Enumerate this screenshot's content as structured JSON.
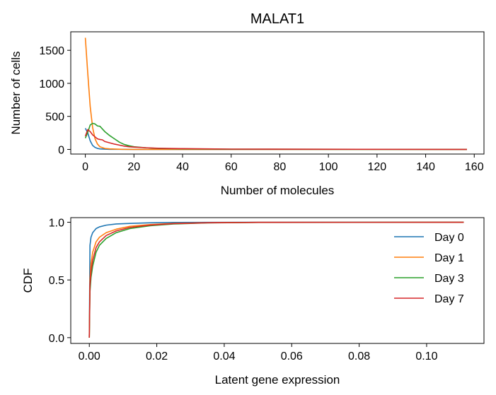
{
  "chart_data": [
    {
      "type": "line",
      "title": "MALAT1",
      "xlabel": "Number of molecules",
      "ylabel": "Number of cells",
      "xlim": [
        -6,
        164
      ],
      "ylim": [
        -70,
        1780
      ],
      "xticks": [
        0,
        20,
        40,
        60,
        80,
        100,
        120,
        140,
        160
      ],
      "yticks": [
        0,
        500,
        1000,
        1500
      ],
      "grid": false,
      "series": [
        {
          "name": "Day 0",
          "color": "#1f77b4",
          "x": [
            0,
            1,
            2,
            3,
            4,
            5,
            6,
            8,
            10,
            15,
            20,
            157
          ],
          "y": [
            320,
            250,
            130,
            60,
            30,
            15,
            8,
            4,
            2,
            1,
            0,
            0
          ]
        },
        {
          "name": "Day 1",
          "color": "#ff7f0e",
          "x": [
            0,
            1,
            2,
            3,
            4,
            5,
            6,
            8,
            10,
            15,
            20,
            157
          ],
          "y": [
            1690,
            1150,
            650,
            330,
            160,
            80,
            40,
            15,
            8,
            2,
            0,
            0
          ]
        },
        {
          "name": "Day 3",
          "color": "#2ca02c",
          "x": [
            0,
            1,
            2,
            3,
            4,
            5,
            6,
            7,
            8,
            10,
            12,
            14,
            16,
            18,
            20,
            25,
            30,
            40,
            60,
            157
          ],
          "y": [
            170,
            260,
            370,
            395,
            385,
            355,
            350,
            310,
            270,
            210,
            160,
            110,
            75,
            55,
            40,
            25,
            15,
            8,
            3,
            0
          ]
        },
        {
          "name": "Day 7",
          "color": "#d62728",
          "x": [
            0,
            1,
            2,
            3,
            4,
            5,
            6,
            7,
            8,
            10,
            12,
            14,
            16,
            18,
            20,
            25,
            30,
            40,
            60,
            157
          ],
          "y": [
            200,
            300,
            270,
            220,
            190,
            160,
            150,
            145,
            120,
            100,
            80,
            65,
            50,
            40,
            35,
            25,
            18,
            12,
            5,
            0
          ]
        }
      ]
    },
    {
      "type": "line",
      "title": "",
      "xlabel": "Latent gene expression",
      "ylabel": "CDF",
      "xlim": [
        -0.0055,
        0.117
      ],
      "ylim": [
        -0.05,
        1.04
      ],
      "xticks": [
        0.0,
        0.02,
        0.04,
        0.06,
        0.08,
        0.1
      ],
      "xticklabels": [
        "0.00",
        "0.02",
        "0.04",
        "0.06",
        "0.08",
        "0.10"
      ],
      "yticks": [
        0.0,
        0.5,
        1.0
      ],
      "yticklabels": [
        "0.0",
        "0.5",
        "1.0"
      ],
      "grid": false,
      "legend": "top-right",
      "series": [
        {
          "name": "Day 0",
          "color": "#1f77b4",
          "x": [
            0,
            0.0002,
            0.0005,
            0.001,
            0.002,
            0.003,
            0.005,
            0.008,
            0.012,
            0.018,
            0.025,
            0.035,
            0.05,
            0.111
          ],
          "y": [
            0,
            0.8,
            0.87,
            0.91,
            0.945,
            0.96,
            0.975,
            0.985,
            0.99,
            0.995,
            0.998,
            0.999,
            1.0,
            1.0
          ]
        },
        {
          "name": "Day 1",
          "color": "#ff7f0e",
          "x": [
            0,
            0.0002,
            0.0005,
            0.001,
            0.002,
            0.003,
            0.005,
            0.008,
            0.012,
            0.018,
            0.025,
            0.035,
            0.05,
            0.111
          ],
          "y": [
            0,
            0.5,
            0.64,
            0.74,
            0.83,
            0.87,
            0.91,
            0.94,
            0.965,
            0.98,
            0.99,
            0.996,
            0.999,
            1.0
          ]
        },
        {
          "name": "Day 3",
          "color": "#2ca02c",
          "x": [
            0,
            0.0002,
            0.0005,
            0.001,
            0.002,
            0.003,
            0.005,
            0.008,
            0.012,
            0.018,
            0.025,
            0.035,
            0.05,
            0.111
          ],
          "y": [
            0,
            0.4,
            0.52,
            0.62,
            0.74,
            0.8,
            0.86,
            0.91,
            0.945,
            0.97,
            0.985,
            0.994,
            0.998,
            1.0
          ]
        },
        {
          "name": "Day 7",
          "color": "#d62728",
          "x": [
            0,
            0.0002,
            0.0005,
            0.001,
            0.002,
            0.003,
            0.005,
            0.008,
            0.012,
            0.018,
            0.025,
            0.035,
            0.05,
            0.111
          ],
          "y": [
            0,
            0.45,
            0.57,
            0.67,
            0.78,
            0.83,
            0.885,
            0.925,
            0.955,
            0.975,
            0.988,
            0.995,
            0.999,
            1.0
          ]
        }
      ]
    }
  ]
}
